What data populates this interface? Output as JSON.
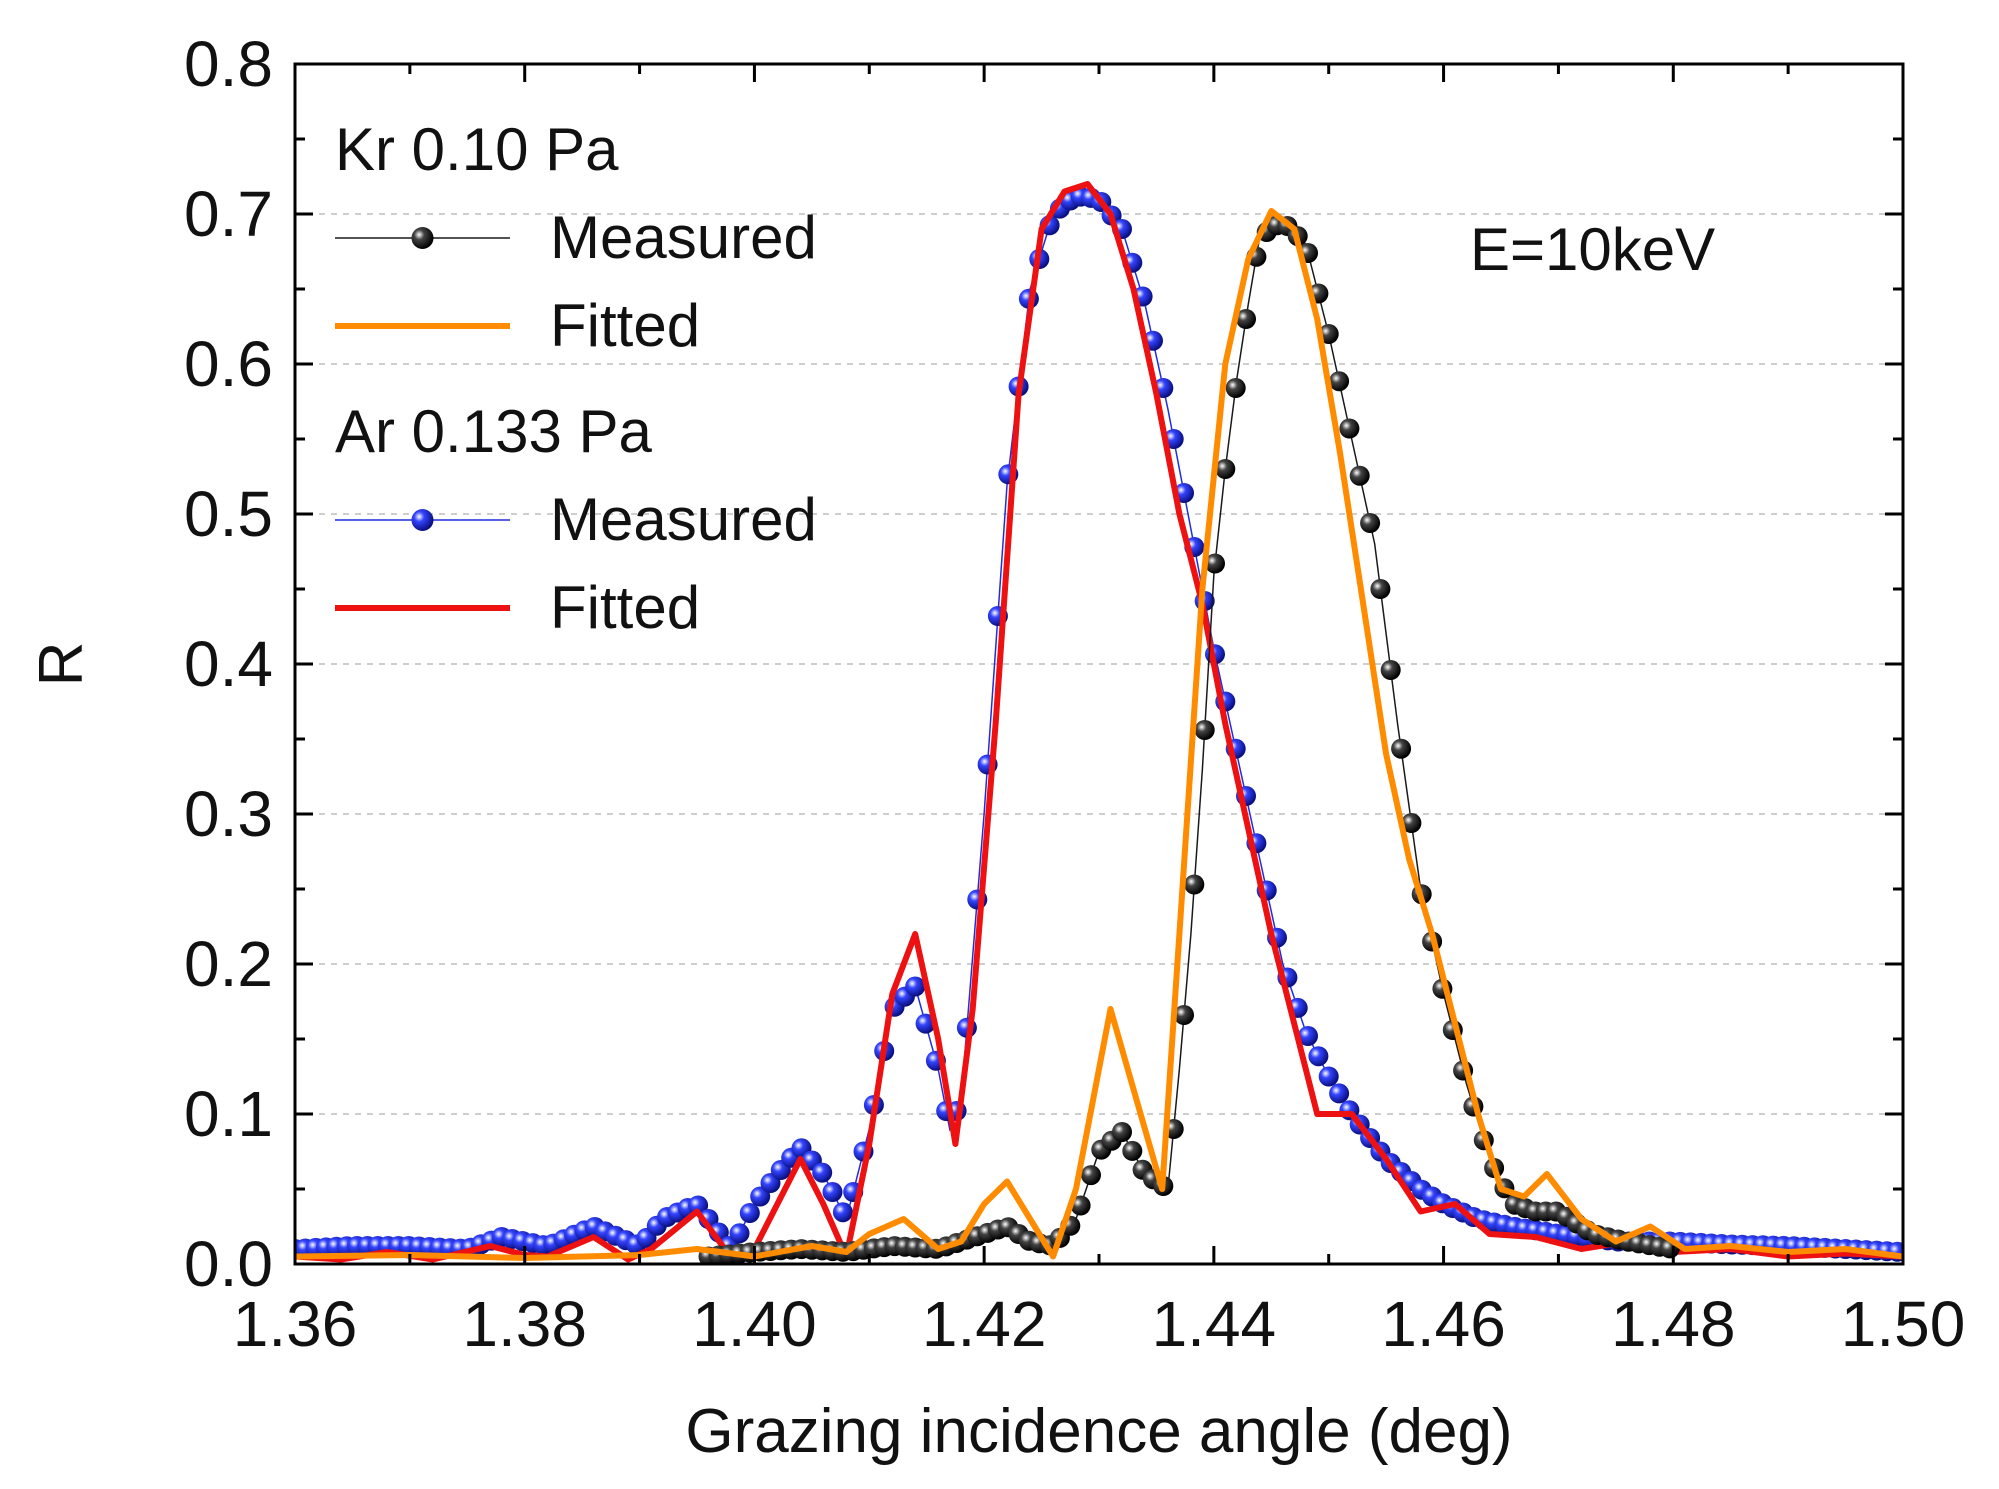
{
  "chart_data": {
    "type": "line",
    "title": "",
    "xlabel": "Grazing incidence angle (deg)",
    "ylabel": "R",
    "xlim": [
      1.36,
      1.5
    ],
    "ylim": [
      0.0,
      0.8
    ],
    "xticks": [
      "1.36",
      "1.38",
      "1.40",
      "1.42",
      "1.44",
      "1.46",
      "1.48",
      "1.50"
    ],
    "yticks": [
      "0.0",
      "0.1",
      "0.2",
      "0.3",
      "0.4",
      "0.5",
      "0.6",
      "0.7",
      "0.8"
    ],
    "grid": "horizontal dashed",
    "annotation": "E=10keV",
    "legend": {
      "position": "top-left",
      "groups": [
        {
          "heading": "Kr 0.10 Pa",
          "entries": [
            {
              "label": "Measured",
              "style": "markers",
              "color": "#1a1a1a"
            },
            {
              "label": "Fitted",
              "style": "line",
              "color": "#ff8c00"
            }
          ]
        },
        {
          "heading": "Ar 0.133 Pa",
          "entries": [
            {
              "label": "Measured",
              "style": "markers",
              "color": "#1f2de0"
            },
            {
              "label": "Fitted",
              "style": "line",
              "color": "#ee1111"
            }
          ]
        }
      ]
    },
    "series": [
      {
        "name": "Ar 0.133 Pa Measured",
        "style": "markers",
        "color": "#1f2de0",
        "x": [
          1.36,
          1.365,
          1.37,
          1.375,
          1.378,
          1.382,
          1.386,
          1.39,
          1.392,
          1.395,
          1.398,
          1.4,
          1.402,
          1.404,
          1.406,
          1.408,
          1.41,
          1.412,
          1.414,
          1.416,
          1.417,
          1.418,
          1.42,
          1.422,
          1.424,
          1.426,
          1.428,
          1.43,
          1.432,
          1.434,
          1.436,
          1.438,
          1.44,
          1.442,
          1.444,
          1.446,
          1.448,
          1.45,
          1.452,
          1.455,
          1.458,
          1.46,
          1.463,
          1.466,
          1.47,
          1.475,
          1.48,
          1.485,
          1.49,
          1.495,
          1.5
        ],
        "y": [
          0.01,
          0.012,
          0.012,
          0.01,
          0.018,
          0.012,
          0.025,
          0.012,
          0.03,
          0.04,
          0.01,
          0.04,
          0.06,
          0.078,
          0.06,
          0.03,
          0.09,
          0.17,
          0.185,
          0.13,
          0.09,
          0.11,
          0.3,
          0.52,
          0.65,
          0.7,
          0.712,
          0.71,
          0.69,
          0.64,
          0.57,
          0.49,
          0.41,
          0.34,
          0.27,
          0.2,
          0.155,
          0.125,
          0.1,
          0.07,
          0.05,
          0.04,
          0.03,
          0.025,
          0.02,
          0.015,
          0.015,
          0.013,
          0.012,
          0.01,
          0.008
        ]
      },
      {
        "name": "Ar 0.133 Pa Fitted",
        "style": "line",
        "color": "#ee1111",
        "x": [
          1.36,
          1.364,
          1.368,
          1.372,
          1.377,
          1.38,
          1.382,
          1.386,
          1.389,
          1.391,
          1.395,
          1.398,
          1.4,
          1.402,
          1.404,
          1.406,
          1.408,
          1.41,
          1.412,
          1.414,
          1.416,
          1.4175,
          1.419,
          1.421,
          1.423,
          1.425,
          1.427,
          1.429,
          1.431,
          1.433,
          1.435,
          1.437,
          1.439,
          1.441,
          1.443,
          1.445,
          1.447,
          1.449,
          1.452,
          1.455,
          1.458,
          1.461,
          1.464,
          1.468,
          1.472,
          1.476,
          1.48,
          1.485,
          1.49,
          1.495,
          1.5
        ],
        "y": [
          0.005,
          0.003,
          0.008,
          0.003,
          0.012,
          0.006,
          0.005,
          0.018,
          0.003,
          0.01,
          0.035,
          0.004,
          0.01,
          0.04,
          0.07,
          0.04,
          0.005,
          0.08,
          0.18,
          0.22,
          0.15,
          0.08,
          0.17,
          0.36,
          0.58,
          0.69,
          0.715,
          0.72,
          0.7,
          0.65,
          0.58,
          0.5,
          0.44,
          0.36,
          0.29,
          0.22,
          0.16,
          0.1,
          0.1,
          0.07,
          0.035,
          0.04,
          0.02,
          0.018,
          0.01,
          0.015,
          0.008,
          0.01,
          0.005,
          0.007,
          0.005
        ]
      },
      {
        "name": "Kr 0.10 Pa Measured",
        "style": "markers",
        "color": "#1a1a1a",
        "x": [
          1.396,
          1.4,
          1.404,
          1.408,
          1.412,
          1.416,
          1.42,
          1.422,
          1.424,
          1.426,
          1.428,
          1.43,
          1.432,
          1.434,
          1.436,
          1.437,
          1.438,
          1.439,
          1.44,
          1.441,
          1.442,
          1.443,
          1.444,
          1.446,
          1.448,
          1.45,
          1.452,
          1.454,
          1.456,
          1.458,
          1.46,
          1.462,
          1.464,
          1.466,
          1.468,
          1.47,
          1.473,
          1.476,
          1.48
        ],
        "y": [
          0.005,
          0.008,
          0.01,
          0.008,
          0.012,
          0.01,
          0.02,
          0.025,
          0.015,
          0.012,
          0.03,
          0.075,
          0.088,
          0.06,
          0.05,
          0.13,
          0.22,
          0.33,
          0.46,
          0.53,
          0.59,
          0.64,
          0.685,
          0.695,
          0.68,
          0.62,
          0.55,
          0.48,
          0.36,
          0.25,
          0.18,
          0.12,
          0.07,
          0.04,
          0.035,
          0.035,
          0.02,
          0.015,
          0.01
        ]
      },
      {
        "name": "Kr 0.10 Pa Fitted",
        "style": "line",
        "color": "#ff8c00",
        "x": [
          1.36,
          1.37,
          1.38,
          1.39,
          1.395,
          1.4,
          1.405,
          1.408,
          1.41,
          1.413,
          1.416,
          1.418,
          1.42,
          1.422,
          1.424,
          1.426,
          1.428,
          1.431,
          1.434,
          1.4355,
          1.437,
          1.439,
          1.441,
          1.443,
          1.445,
          1.447,
          1.449,
          1.451,
          1.453,
          1.455,
          1.457,
          1.459,
          1.461,
          1.463,
          1.465,
          1.467,
          1.469,
          1.472,
          1.475,
          1.478,
          1.481,
          1.485,
          1.49,
          1.495,
          1.5
        ],
        "y": [
          0.005,
          0.006,
          0.004,
          0.006,
          0.01,
          0.005,
          0.012,
          0.008,
          0.02,
          0.03,
          0.01,
          0.015,
          0.04,
          0.055,
          0.03,
          0.005,
          0.05,
          0.17,
          0.09,
          0.05,
          0.22,
          0.45,
          0.6,
          0.67,
          0.702,
          0.69,
          0.63,
          0.54,
          0.44,
          0.34,
          0.27,
          0.22,
          0.16,
          0.1,
          0.05,
          0.045,
          0.06,
          0.03,
          0.015,
          0.025,
          0.01,
          0.012,
          0.008,
          0.01,
          0.005
        ]
      }
    ]
  }
}
